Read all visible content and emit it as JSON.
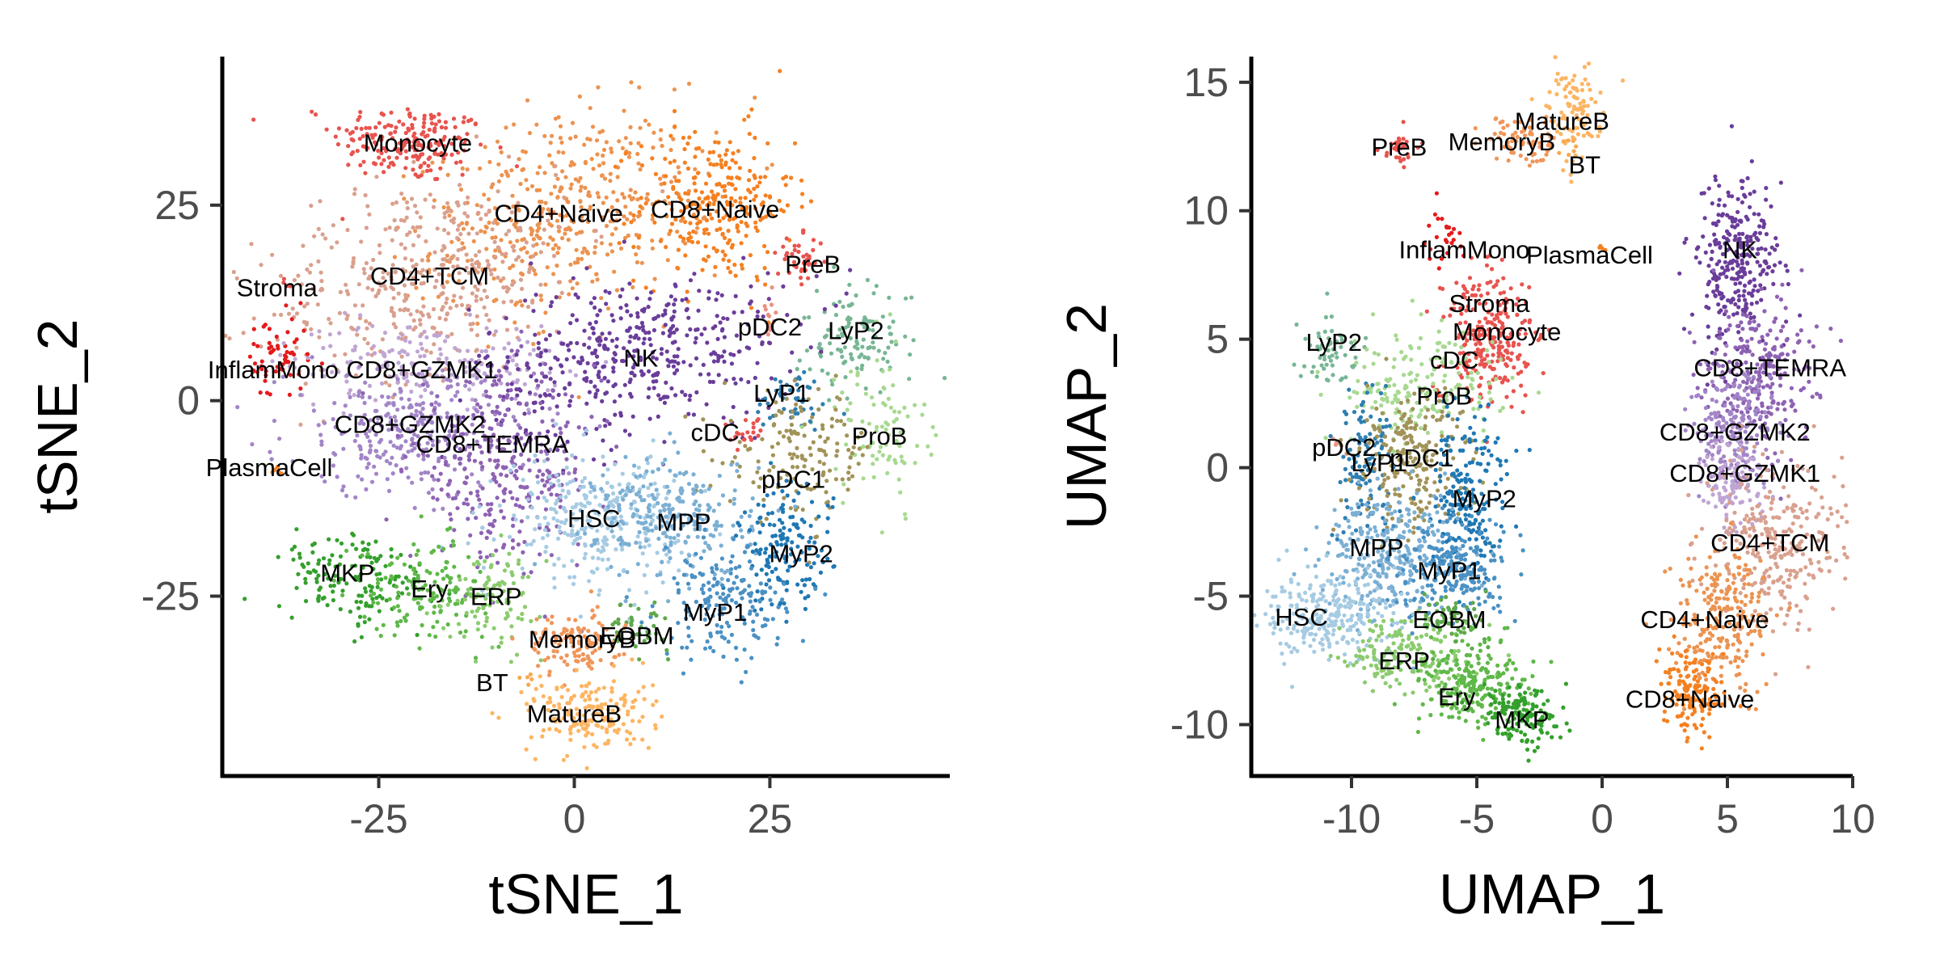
{
  "chart_data": [
    {
      "type": "scatter",
      "xlabel": "tSNE_1",
      "ylabel": "tSNE_2",
      "xlim": [
        -45,
        48
      ],
      "ylim": [
        -48,
        44
      ],
      "xticks": [
        -25,
        0,
        25
      ],
      "yticks": [
        -25,
        0,
        25
      ],
      "xtick_labels": [
        "-25",
        "0",
        "25"
      ],
      "ytick_labels": [
        "-25",
        "0",
        "25"
      ],
      "grid": false,
      "legend": "none",
      "clusters": [
        {
          "name": "Monocyte",
          "color": "#E8534E",
          "x": -21,
          "y": 33,
          "sx": 5,
          "sy": 2.5,
          "rot": -5,
          "n": 200
        },
        {
          "name": "CD4+Naive",
          "color": "#EC9350",
          "x": -1,
          "y": 24,
          "sx": 9,
          "sy": 6,
          "rot": 15,
          "n": 450
        },
        {
          "name": "CD8+Naive",
          "color": "#F58021",
          "x": 18,
          "y": 25,
          "sx": 5,
          "sy": 5,
          "rot": 0,
          "n": 280
        },
        {
          "name": "CD4+TCM",
          "color": "#D9A08E",
          "x": -19,
          "y": 16,
          "sx": 10,
          "sy": 6,
          "rot": 15,
          "n": 420
        },
        {
          "name": "Stroma",
          "color": "#E8534E",
          "x": -37,
          "y": 15,
          "sx": 0.3,
          "sy": 0.3,
          "rot": 0,
          "n": 4
        },
        {
          "name": "PreB",
          "color": "#E8534E",
          "x": 29,
          "y": 18,
          "sx": 1.5,
          "sy": 1.5,
          "rot": 0,
          "n": 40
        },
        {
          "name": "pDC2",
          "color": "#E89282",
          "x": 25,
          "y": 12,
          "sx": 0.5,
          "sy": 1.5,
          "rot": 0,
          "n": 12
        },
        {
          "name": "LyP2",
          "color": "#77B694",
          "x": 36,
          "y": 8,
          "sx": 3.5,
          "sy": 3.5,
          "rot": 30,
          "n": 120
        },
        {
          "name": "InflamMono",
          "color": "#E41A1C",
          "x": -38,
          "y": 5,
          "sx": 2,
          "sy": 3,
          "rot": 0,
          "n": 60
        },
        {
          "name": "CD8+GZMK1",
          "color": "#BFA5D4",
          "x": -19,
          "y": 5,
          "sx": 9,
          "sy": 2.5,
          "rot": 0,
          "n": 200
        },
        {
          "name": "NK",
          "color": "#6A3D9A",
          "x": 8,
          "y": 6,
          "sx": 10,
          "sy": 5,
          "rot": 10,
          "n": 450
        },
        {
          "name": "LyP1",
          "color": "#2F7FB0",
          "x": 28,
          "y": 0,
          "sx": 2.5,
          "sy": 2,
          "rot": 0,
          "n": 50
        },
        {
          "name": "ProB",
          "color": "#A7D990",
          "x": 39,
          "y": -4,
          "sx": 3,
          "sy": 5,
          "rot": 10,
          "n": 90
        },
        {
          "name": "CD8+GZMK2",
          "color": "#A285C7",
          "x": -21,
          "y": -4,
          "sx": 8,
          "sy": 4,
          "rot": 0,
          "n": 300
        },
        {
          "name": "CD8+TEMRA",
          "color": "#8E62B3",
          "x": -9,
          "y": -9,
          "sx": 6,
          "sy": 6,
          "rot": 0,
          "n": 320
        },
        {
          "name": "cDC",
          "color": "#E8534E",
          "x": 22,
          "y": -4,
          "sx": 1,
          "sy": 1,
          "rot": 0,
          "n": 20
        },
        {
          "name": "pDC1",
          "color": "#A19358",
          "x": 29,
          "y": -7,
          "sx": 5,
          "sy": 4,
          "rot": 0,
          "n": 150
        },
        {
          "name": "PlasmaCell",
          "color": "#F58021",
          "x": -38,
          "y": -9,
          "sx": 0.4,
          "sy": 0.4,
          "rot": 0,
          "n": 5
        },
        {
          "name": "HSC",
          "color": "#A6CBE3",
          "x": 3,
          "y": -15,
          "sx": 6,
          "sy": 4,
          "rot": 0,
          "n": 300
        },
        {
          "name": "MPP",
          "color": "#7BAFD4",
          "x": 13,
          "y": -15,
          "sx": 5,
          "sy": 4,
          "rot": 0,
          "n": 250
        },
        {
          "name": "MyP2",
          "color": "#1F78B4",
          "x": 27,
          "y": -19,
          "sx": 3,
          "sy": 4,
          "rot": 0,
          "n": 150
        },
        {
          "name": "MyP1",
          "color": "#4A91C4",
          "x": 19,
          "y": -26,
          "sx": 4,
          "sy": 3.5,
          "rot": 0,
          "n": 180
        },
        {
          "name": "MKP",
          "color": "#33A02C",
          "x": -28,
          "y": -23,
          "sx": 5,
          "sy": 3,
          "rot": -15,
          "n": 150
        },
        {
          "name": "Ery",
          "color": "#5FB848",
          "x": -19,
          "y": -24,
          "sx": 4,
          "sy": 3,
          "rot": 0,
          "n": 140
        },
        {
          "name": "ERP",
          "color": "#8BCB6E",
          "x": -10,
          "y": -25,
          "sx": 3,
          "sy": 3,
          "rot": 0,
          "n": 100
        },
        {
          "name": "EOBM",
          "color": "#5FA84B",
          "x": 8,
          "y": -29,
          "sx": 2,
          "sy": 1.5,
          "rot": 0,
          "n": 40
        },
        {
          "name": "MemoryB",
          "color": "#F0965A",
          "x": 0,
          "y": -31,
          "sx": 3,
          "sy": 2,
          "rot": 0,
          "n": 120
        },
        {
          "name": "BT",
          "color": "#F8A84F",
          "x": -6,
          "y": -36,
          "sx": 0.5,
          "sy": 0.5,
          "rot": 0,
          "n": 5
        },
        {
          "name": "MatureB",
          "color": "#FDB562",
          "x": 2,
          "y": -40,
          "sx": 4,
          "sy": 2.5,
          "rot": 0,
          "n": 180
        }
      ]
    },
    {
      "type": "scatter",
      "xlabel": "UMAP_1",
      "ylabel": "UMAP_2",
      "xlim": [
        -14,
        10
      ],
      "ylim": [
        -12,
        16
      ],
      "xticks": [
        -10,
        -5,
        0,
        5,
        10
      ],
      "yticks": [
        -10,
        -5,
        0,
        5,
        10,
        15
      ],
      "xtick_labels": [
        "-10",
        "-5",
        "0",
        "5",
        "10"
      ],
      "ytick_labels": [
        "-10",
        "-5",
        "0",
        "5",
        "10",
        "15"
      ],
      "grid": false,
      "legend": "none",
      "clusters": [
        {
          "name": "PreB",
          "color": "#E8534E",
          "x": -8,
          "y": 12.4,
          "sx": 0.4,
          "sy": 0.3,
          "rot": 0,
          "n": 30
        },
        {
          "name": "MemoryB",
          "color": "#F0965A",
          "x": -3.3,
          "y": 12.8,
          "sx": 0.7,
          "sy": 0.5,
          "rot": 0,
          "n": 70
        },
        {
          "name": "MatureB",
          "color": "#FDB562",
          "x": -1.2,
          "y": 13.8,
          "sx": 0.5,
          "sy": 0.9,
          "rot": 0,
          "n": 100
        },
        {
          "name": "BT",
          "color": "#F8A84F",
          "x": -1.3,
          "y": 12.3,
          "sx": 0.2,
          "sy": 0.3,
          "rot": 0,
          "n": 8
        },
        {
          "name": "InflamMono",
          "color": "#E41A1C",
          "x": -6.3,
          "y": 8.8,
          "sx": 0.4,
          "sy": 0.6,
          "rot": 0,
          "n": 25
        },
        {
          "name": "PlasmaCell",
          "color": "#F58021",
          "x": 0,
          "y": 8.6,
          "sx": 0.1,
          "sy": 0.1,
          "rot": 0,
          "n": 4
        },
        {
          "name": "NK",
          "color": "#6A3D9A",
          "x": 5.3,
          "y": 8,
          "sx": 0.9,
          "sy": 1.7,
          "rot": 0,
          "n": 300
        },
        {
          "name": "Stroma",
          "color": "#E8534E",
          "x": -5.4,
          "y": 6.6,
          "sx": 0.3,
          "sy": 0.4,
          "rot": 0,
          "n": 10
        },
        {
          "name": "Monocyte",
          "color": "#E8534E",
          "x": -4.5,
          "y": 5,
          "sx": 0.9,
          "sy": 1.3,
          "rot": 0,
          "n": 250
        },
        {
          "name": "LyP2",
          "color": "#77B694",
          "x": -10.8,
          "y": 4.6,
          "sx": 0.5,
          "sy": 0.7,
          "rot": 0,
          "n": 60
        },
        {
          "name": "cDC",
          "color": "#E8534E",
          "x": -6.5,
          "y": 3,
          "sx": 0.2,
          "sy": 0.2,
          "rot": 0,
          "n": 6
        },
        {
          "name": "CD8+TEMRA",
          "color": "#8E62B3",
          "x": 6.3,
          "y": 3.5,
          "sx": 1.1,
          "sy": 1.5,
          "rot": 0,
          "n": 250
        },
        {
          "name": "ProB",
          "color": "#A7D990",
          "x": -7.2,
          "y": 3.2,
          "sx": 1.6,
          "sy": 1,
          "rot": 0,
          "n": 180
        },
        {
          "name": "CD8+GZMK2",
          "color": "#A285C7",
          "x": 5.3,
          "y": 1.5,
          "sx": 0.9,
          "sy": 1.2,
          "rot": 0,
          "n": 200
        },
        {
          "name": "pDC2",
          "color": "#E89282",
          "x": -10.5,
          "y": 0.8,
          "sx": 0.2,
          "sy": 0.2,
          "rot": 0,
          "n": 6
        },
        {
          "name": "LyP1",
          "color": "#2F7FB0",
          "x": -9.5,
          "y": 0.2,
          "sx": 0.6,
          "sy": 1.6,
          "rot": 0,
          "n": 120
        },
        {
          "name": "pDC1",
          "color": "#A19358",
          "x": -7.5,
          "y": 0.2,
          "sx": 1.1,
          "sy": 1.3,
          "rot": 0,
          "n": 220
        },
        {
          "name": "MyP2",
          "color": "#1F78B4",
          "x": -5.4,
          "y": -0.8,
          "sx": 0.8,
          "sy": 1.6,
          "rot": 0,
          "n": 200
        },
        {
          "name": "CD8+GZMK1",
          "color": "#BFA5D4",
          "x": 5.2,
          "y": -0.5,
          "sx": 0.6,
          "sy": 1,
          "rot": 0,
          "n": 120
        },
        {
          "name": "CD4+TCM",
          "color": "#D9A08E",
          "x": 7,
          "y": -3,
          "sx": 1.4,
          "sy": 1.6,
          "rot": 0,
          "n": 300
        },
        {
          "name": "MPP",
          "color": "#7BAFD4",
          "x": -8.5,
          "y": -3.5,
          "sx": 1.4,
          "sy": 1.3,
          "rot": 0,
          "n": 300
        },
        {
          "name": "MyP1",
          "color": "#4A91C4",
          "x": -5.8,
          "y": -4,
          "sx": 1.1,
          "sy": 1,
          "rot": 0,
          "n": 220
        },
        {
          "name": "CD4+Naive",
          "color": "#EC9350",
          "x": 4.7,
          "y": -6,
          "sx": 1,
          "sy": 1.3,
          "rot": 0,
          "n": 230
        },
        {
          "name": "HSC",
          "color": "#A6CBE3",
          "x": -11,
          "y": -5.8,
          "sx": 1.3,
          "sy": 0.9,
          "rot": 0,
          "n": 260
        },
        {
          "name": "EOBM",
          "color": "#5FA84B",
          "x": -6,
          "y": -6,
          "sx": 0.8,
          "sy": 0.6,
          "rot": 0,
          "n": 60
        },
        {
          "name": "ERP",
          "color": "#8BCB6E",
          "x": -7.8,
          "y": -7.3,
          "sx": 1.2,
          "sy": 0.8,
          "rot": 0,
          "n": 180
        },
        {
          "name": "CD8+Naive",
          "color": "#F58021",
          "x": 3.6,
          "y": -8.8,
          "sx": 0.6,
          "sy": 0.8,
          "rot": 0,
          "n": 150
        },
        {
          "name": "Ery",
          "color": "#5FB848",
          "x": -5.2,
          "y": -8.3,
          "sx": 1.1,
          "sy": 0.9,
          "rot": 0,
          "n": 220
        },
        {
          "name": "MKP",
          "color": "#33A02C",
          "x": -3.2,
          "y": -9.6,
          "sx": 0.7,
          "sy": 0.6,
          "rot": -30,
          "n": 150
        }
      ]
    }
  ],
  "panels": [
    {
      "xlabel": "tSNE_1",
      "ylabel": "tSNE_2",
      "labels": [
        {
          "text": "Monocyte",
          "x": -20,
          "y": 33
        },
        {
          "text": "CD4+Naive",
          "x": -2,
          "y": 24
        },
        {
          "text": "CD8+Naive",
          "x": 18,
          "y": 24.5
        },
        {
          "text": "CD4+TCM",
          "x": -18.5,
          "y": 16
        },
        {
          "text": "Stroma",
          "x": -38,
          "y": 14.5
        },
        {
          "text": "PreB",
          "x": 30.5,
          "y": 17.5
        },
        {
          "text": "pDC2",
          "x": 25,
          "y": 9.5
        },
        {
          "text": "LyP2",
          "x": 36,
          "y": 9
        },
        {
          "text": "InflamMono",
          "x": -38.5,
          "y": 4
        },
        {
          "text": "CD8+GZMK1",
          "x": -19.5,
          "y": 4
        },
        {
          "text": "NK",
          "x": 8.5,
          "y": 5.5
        },
        {
          "text": "LyP1",
          "x": 26.5,
          "y": 1
        },
        {
          "text": "ProB",
          "x": 39,
          "y": -4.5
        },
        {
          "text": "CD8+GZMK2",
          "x": -21,
          "y": -3
        },
        {
          "text": "CD8+TEMRA",
          "x": -10.5,
          "y": -5.5
        },
        {
          "text": "cDC",
          "x": 18,
          "y": -4
        },
        {
          "text": "pDC1",
          "x": 28,
          "y": -10
        },
        {
          "text": "PlasmaCell",
          "x": -39,
          "y": -8.5
        },
        {
          "text": "HSC",
          "x": 2.5,
          "y": -15
        },
        {
          "text": "MPP",
          "x": 14,
          "y": -15.5
        },
        {
          "text": "MyP2",
          "x": 29,
          "y": -19.5
        },
        {
          "text": "MyP1",
          "x": 18,
          "y": -27
        },
        {
          "text": "MKP",
          "x": -29,
          "y": -22
        },
        {
          "text": "Ery",
          "x": -18.5,
          "y": -24
        },
        {
          "text": "ERP",
          "x": -10,
          "y": -25
        },
        {
          "text": "EOBM",
          "x": 8,
          "y": -30
        },
        {
          "text": "MemoryB",
          "x": 1,
          "y": -30.5
        },
        {
          "text": "BT",
          "x": -10.5,
          "y": -36
        },
        {
          "text": "MatureB",
          "x": 0,
          "y": -40
        }
      ]
    },
    {
      "xlabel": "UMAP_1",
      "ylabel": "UMAP_2",
      "labels": [
        {
          "text": "PreB",
          "x": -8.1,
          "y": 12.5
        },
        {
          "text": "MemoryB",
          "x": -4,
          "y": 12.7
        },
        {
          "text": "MatureB",
          "x": -1.6,
          "y": 13.5
        },
        {
          "text": "BT",
          "x": -0.7,
          "y": 11.8
        },
        {
          "text": "InflamMono",
          "x": -5.5,
          "y": 8.5
        },
        {
          "text": "PlasmaCell",
          "x": -0.5,
          "y": 8.3
        },
        {
          "text": "NK",
          "x": 5.5,
          "y": 8.5
        },
        {
          "text": "Stroma",
          "x": -4.5,
          "y": 6.4
        },
        {
          "text": "Monocyte",
          "x": -3.8,
          "y": 5.3
        },
        {
          "text": "LyP2",
          "x": -10.7,
          "y": 4.9
        },
        {
          "text": "cDC",
          "x": -5.9,
          "y": 4.2
        },
        {
          "text": "CD8+TEMRA",
          "x": 6.7,
          "y": 3.9
        },
        {
          "text": "ProB",
          "x": -6.3,
          "y": 2.8
        },
        {
          "text": "CD8+GZMK2",
          "x": 5.3,
          "y": 1.4
        },
        {
          "text": "pDC2",
          "x": -10.3,
          "y": 0.8
        },
        {
          "text": "LyP1",
          "x": -8.9,
          "y": 0.2
        },
        {
          "text": "pDC1",
          "x": -7.2,
          "y": 0.4
        },
        {
          "text": "MyP2",
          "x": -4.7,
          "y": -1.2
        },
        {
          "text": "CD8+GZMK1",
          "x": 5.7,
          "y": -0.2
        },
        {
          "text": "CD4+TCM",
          "x": 6.7,
          "y": -2.9
        },
        {
          "text": "MPP",
          "x": -9,
          "y": -3.1
        },
        {
          "text": "MyP1",
          "x": -6.1,
          "y": -4
        },
        {
          "text": "CD4+Naive",
          "x": 4.1,
          "y": -5.9
        },
        {
          "text": "HSC",
          "x": -12,
          "y": -5.8
        },
        {
          "text": "EOBM",
          "x": -6.1,
          "y": -5.9
        },
        {
          "text": "ERP",
          "x": -7.9,
          "y": -7.5
        },
        {
          "text": "CD8+Naive",
          "x": 3.5,
          "y": -9
        },
        {
          "text": "Ery",
          "x": -5.8,
          "y": -8.9
        },
        {
          "text": "MKP",
          "x": -3.2,
          "y": -9.8
        }
      ]
    }
  ]
}
